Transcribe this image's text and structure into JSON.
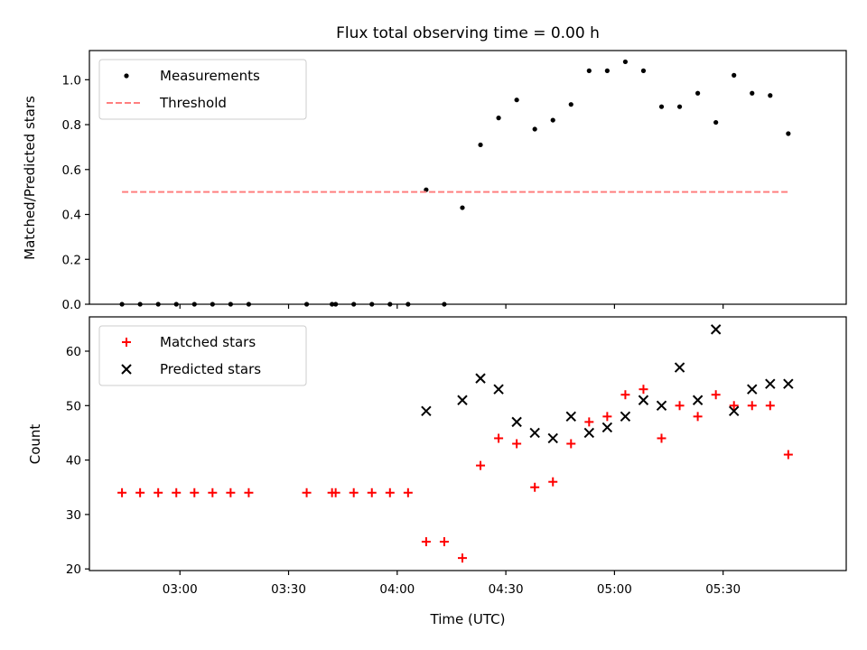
{
  "chart_data": [
    {
      "type": "scatter",
      "title": "Flux total observing time = 0.00 h",
      "xlabel": "",
      "ylabel": "Matched/Predicted stars",
      "ylim": [
        0,
        1.13
      ],
      "yticks": [
        0.0,
        0.2,
        0.4,
        0.6,
        0.8,
        1.0
      ],
      "ytick_labels": [
        "0.0",
        "0.2",
        "0.4",
        "0.6",
        "0.8",
        "1.0"
      ],
      "xlim": [
        "02:35",
        "06:04"
      ],
      "xticks": [
        "03:00",
        "03:30",
        "04:00",
        "04:30",
        "05:00",
        "05:30"
      ],
      "legend": {
        "position": "top-left",
        "entries": [
          "Measurements",
          "Threshold"
        ]
      },
      "series": [
        {
          "name": "Measurements",
          "marker": "dot",
          "color": "#000000",
          "x": [
            "02:44",
            "02:49",
            "02:54",
            "02:59",
            "03:04",
            "03:09",
            "03:14",
            "03:19",
            "03:35",
            "03:42",
            "03:43",
            "03:48",
            "03:53",
            "03:58",
            "04:03",
            "04:08",
            "04:13",
            "04:18",
            "04:23",
            "04:28",
            "04:33",
            "04:38",
            "04:43",
            "04:48",
            "04:53",
            "04:58",
            "05:03",
            "05:08",
            "05:13",
            "05:18",
            "05:23",
            "05:28",
            "05:33",
            "05:38",
            "05:43",
            "05:48"
          ],
          "y": [
            0,
            0,
            0,
            0,
            0,
            0,
            0,
            0,
            0,
            0,
            0,
            0,
            0,
            0,
            0,
            0.51,
            0,
            0.43,
            0.71,
            0.83,
            0.91,
            0.78,
            0.82,
            0.89,
            1.04,
            1.04,
            1.08,
            1.04,
            0.88,
            0.88,
            0.94,
            0.81,
            1.02,
            0.94,
            0.93,
            0.76
          ]
        },
        {
          "name": "Threshold",
          "line_style": "dashed",
          "color": "#ff7f7f",
          "x": [
            "02:44",
            "05:48"
          ],
          "y": [
            0.5,
            0.5
          ]
        }
      ]
    },
    {
      "type": "scatter",
      "title": "",
      "xlabel": "Time (UTC)",
      "ylabel": "Count",
      "ylim": [
        19.7,
        66.3
      ],
      "yticks": [
        20,
        30,
        40,
        50,
        60
      ],
      "ytick_labels": [
        "20",
        "30",
        "40",
        "50",
        "60"
      ],
      "xlim": [
        "02:35",
        "06:04"
      ],
      "xticks": [
        "03:00",
        "03:30",
        "04:00",
        "04:30",
        "05:00",
        "05:30"
      ],
      "xtick_labels": [
        "03:00",
        "03:30",
        "04:00",
        "04:30",
        "05:00",
        "05:30"
      ],
      "legend": {
        "position": "top-left",
        "entries": [
          "Matched stars",
          "Predicted stars"
        ]
      },
      "series": [
        {
          "name": "Matched stars",
          "marker": "plus",
          "color": "#ff0000",
          "x": [
            "02:44",
            "02:49",
            "02:54",
            "02:59",
            "03:04",
            "03:09",
            "03:14",
            "03:19",
            "03:35",
            "03:42",
            "03:43",
            "03:48",
            "03:53",
            "03:58",
            "04:03",
            "04:08",
            "04:13",
            "04:18",
            "04:23",
            "04:28",
            "04:33",
            "04:38",
            "04:43",
            "04:48",
            "04:53",
            "04:58",
            "05:03",
            "05:08",
            "05:13",
            "05:18",
            "05:23",
            "05:28",
            "05:33",
            "05:38",
            "05:43",
            "05:48"
          ],
          "y": [
            34,
            34,
            34,
            34,
            34,
            34,
            34,
            34,
            34,
            34,
            34,
            34,
            34,
            34,
            34,
            25,
            25,
            22,
            39,
            44,
            43,
            35,
            36,
            43,
            47,
            48,
            52,
            53,
            44,
            50,
            48,
            52,
            50,
            50,
            50,
            41
          ]
        },
        {
          "name": "Predicted stars",
          "marker": "x",
          "color": "#000000",
          "x": [
            "04:08",
            "04:18",
            "04:23",
            "04:28",
            "04:33",
            "04:38",
            "04:43",
            "04:48",
            "04:53",
            "04:58",
            "05:03",
            "05:08",
            "05:13",
            "05:18",
            "05:23",
            "05:28",
            "05:33",
            "05:38",
            "05:43",
            "05:48"
          ],
          "y": [
            49,
            51,
            55,
            53,
            47,
            45,
            44,
            48,
            45,
            46,
            48,
            51,
            50,
            57,
            51,
            64,
            49,
            53,
            54,
            54
          ]
        }
      ]
    }
  ]
}
